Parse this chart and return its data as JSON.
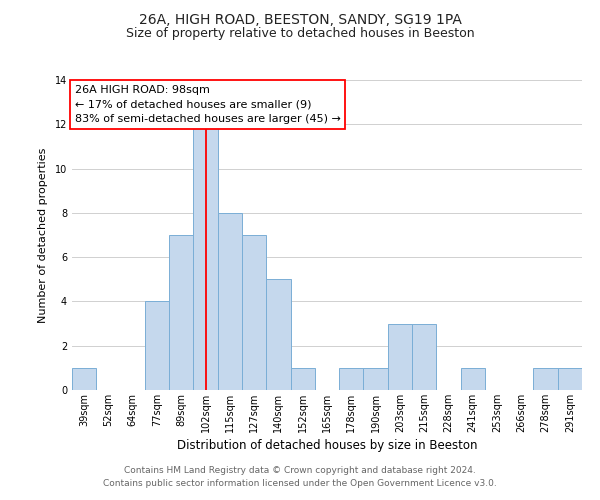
{
  "title": "26A, HIGH ROAD, BEESTON, SANDY, SG19 1PA",
  "subtitle": "Size of property relative to detached houses in Beeston",
  "xlabel": "Distribution of detached houses by size in Beeston",
  "ylabel": "Number of detached properties",
  "footer1": "Contains HM Land Registry data © Crown copyright and database right 2024.",
  "footer2": "Contains public sector information licensed under the Open Government Licence v3.0.",
  "annotation_line1": "26A HIGH ROAD: 98sqm",
  "annotation_line2": "← 17% of detached houses are smaller (9)",
  "annotation_line3": "83% of semi-detached houses are larger (45) →",
  "bar_labels": [
    "39sqm",
    "52sqm",
    "64sqm",
    "77sqm",
    "89sqm",
    "102sqm",
    "115sqm",
    "127sqm",
    "140sqm",
    "152sqm",
    "165sqm",
    "178sqm",
    "190sqm",
    "203sqm",
    "215sqm",
    "228sqm",
    "241sqm",
    "253sqm",
    "266sqm",
    "278sqm",
    "291sqm"
  ],
  "bar_values": [
    1,
    0,
    0,
    4,
    7,
    12,
    8,
    7,
    5,
    1,
    0,
    1,
    1,
    3,
    3,
    0,
    1,
    0,
    0,
    1,
    1
  ],
  "bar_color": "#c5d8ed",
  "bar_edge_color": "#7aaed6",
  "red_line_index": 5,
  "ylim": [
    0,
    14
  ],
  "yticks": [
    0,
    2,
    4,
    6,
    8,
    10,
    12,
    14
  ],
  "grid_color": "#d0d0d0",
  "background_color": "#ffffff",
  "title_fontsize": 10,
  "subtitle_fontsize": 9,
  "xlabel_fontsize": 8.5,
  "ylabel_fontsize": 8,
  "tick_fontsize": 7,
  "footer_fontsize": 6.5,
  "annotation_fontsize": 8
}
